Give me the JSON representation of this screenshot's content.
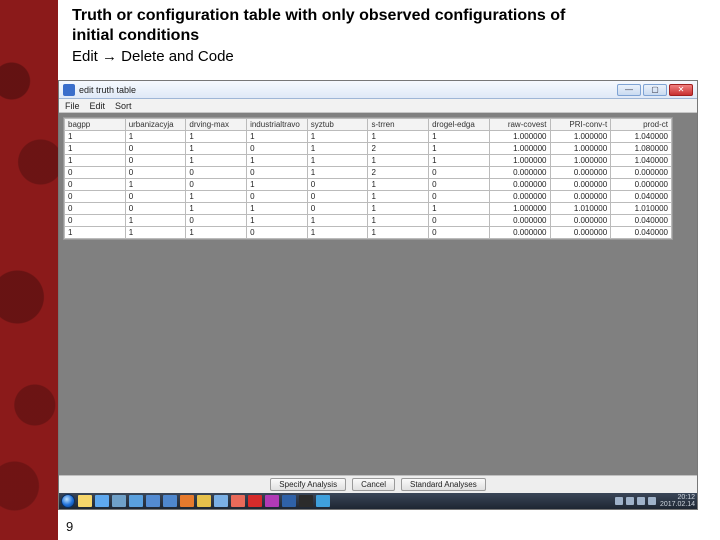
{
  "slide": {
    "title_line1": "Truth or configuration table with only observed configurations of",
    "title_line2": "initial conditions",
    "subtitle": "Edit → Delete and Code",
    "page_number": "9"
  },
  "window": {
    "title": "edit truth table",
    "min": "—",
    "max": "▢",
    "close": "✕",
    "menu": [
      "File",
      "Edit",
      "Sort"
    ]
  },
  "table": {
    "columns": [
      "bagpp",
      "urbanizacyja",
      "drving-max",
      "industrialtravo",
      "syztub",
      "s-trren",
      "drogel-edga",
      "raw-covest",
      "PRI-conv-t",
      "prod-ct"
    ],
    "col_align": [
      "left",
      "left",
      "left",
      "left",
      "left",
      "left",
      "left",
      "right",
      "right",
      "right"
    ],
    "rows": [
      [
        "1",
        "1",
        "1",
        "1",
        "1",
        "1",
        "1",
        "1.000000",
        "1.000000",
        "1.040000"
      ],
      [
        "1",
        "0",
        "1",
        "0",
        "1",
        "2",
        "1",
        "1.000000",
        "1.000000",
        "1.080000"
      ],
      [
        "1",
        "0",
        "1",
        "1",
        "1",
        "1",
        "1",
        "1.000000",
        "1.000000",
        "1.040000"
      ],
      [
        "0",
        "0",
        "0",
        "0",
        "1",
        "2",
        "0",
        "0.000000",
        "0.000000",
        "0.000000"
      ],
      [
        "0",
        "1",
        "0",
        "1",
        "0",
        "1",
        "0",
        "0.000000",
        "0.000000",
        "0.000000"
      ],
      [
        "0",
        "0",
        "1",
        "0",
        "0",
        "1",
        "0",
        "0.000000",
        "0.000000",
        "0.040000"
      ],
      [
        "0",
        "0",
        "1",
        "1",
        "0",
        "1",
        "1",
        "1.000000",
        "1.010000",
        "1.010000"
      ],
      [
        "0",
        "1",
        "0",
        "1",
        "1",
        "1",
        "0",
        "0.000000",
        "0.000000",
        "0.040000"
      ],
      [
        "1",
        "1",
        "1",
        "0",
        "1",
        "1",
        "0",
        "0.000000",
        "0.000000",
        "0.040000"
      ]
    ]
  },
  "buttons": {
    "specify": "Specify Analysis",
    "cancel": "Cancel",
    "standard": "Standard Analyses"
  },
  "taskbar": {
    "icons": [
      "#f6d66b",
      "#5ea8ef",
      "#6fa0c8",
      "#5aa0de",
      "#538bd2",
      "#4f88cf",
      "#e67a2d",
      "#e7c14b",
      "#7bb0e5",
      "#e86a5a",
      "#d52b2b",
      "#b13ab6",
      "#2f62a8",
      "#2b2b2b",
      "#3fa0dc"
    ],
    "time": "20:12",
    "date": "2017.02.14"
  }
}
